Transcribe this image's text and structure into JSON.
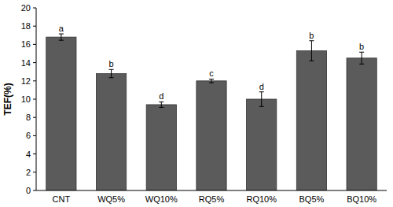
{
  "chart_data": {
    "type": "bar",
    "y_label": "TEF(%)",
    "categories": [
      "CNT",
      "WQ5%",
      "WQ10%",
      "RQ5%",
      "RQ10%",
      "BQ5%",
      "BQ10%"
    ],
    "values": [
      16.8,
      12.8,
      9.4,
      12.0,
      10.0,
      15.3,
      14.5
    ],
    "errors": [
      0.35,
      0.45,
      0.3,
      0.2,
      0.8,
      1.1,
      0.65
    ],
    "significance": [
      "a",
      "b",
      "d",
      "c",
      "d",
      "b",
      "b"
    ],
    "color": "#5b5b5b",
    "ylim": [
      0,
      20
    ],
    "yticks": [
      0,
      2,
      4,
      6,
      8,
      10,
      12,
      14,
      16,
      18,
      20
    ],
    "grid": false
  }
}
